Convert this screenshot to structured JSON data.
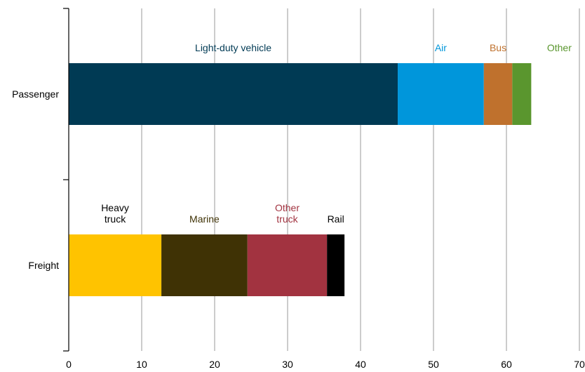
{
  "chart_data": {
    "type": "bar",
    "orientation": "horizontal",
    "stacked": true,
    "title": "",
    "xlabel": "",
    "ylabel": "",
    "xlim": [
      0,
      70
    ],
    "x_ticks": [
      "0",
      "10",
      "20",
      "30",
      "40",
      "50",
      "60",
      "70"
    ],
    "grid": "vertical",
    "legend": "none",
    "categories": [
      "Passenger",
      "Freight"
    ],
    "bars": [
      {
        "category": "Passenger",
        "segments": [
          {
            "name": "Light-duty vehicle",
            "label": [
              "Light-duty vehicle"
            ],
            "value": 45.1,
            "color": "#003a54",
            "label_color": "#003a54"
          },
          {
            "name": "Air",
            "label": [
              "Air"
            ],
            "value": 11.8,
            "color": "#0096db",
            "label_color": "#0096db"
          },
          {
            "name": "Bus",
            "label": [
              "Bus"
            ],
            "value": 3.9,
            "color": "#bf712d",
            "label_color": "#bf712d"
          },
          {
            "name": "Other",
            "label": [
              "Other"
            ],
            "value": 2.6,
            "color": "#5a962e",
            "label_color": "#5a962e"
          }
        ]
      },
      {
        "category": "Freight",
        "segments": [
          {
            "name": "Heavy truck",
            "label": [
              "Heavy",
              "truck"
            ],
            "value": 12.7,
            "color": "#ffc300",
            "label_color": "#000000"
          },
          {
            "name": "Marine",
            "label": [
              "Marine"
            ],
            "value": 11.8,
            "color": "#3f3205",
            "label_color": "#3f3205"
          },
          {
            "name": "Other truck",
            "label": [
              "Other",
              "truck"
            ],
            "value": 10.9,
            "color": "#a23340",
            "label_color": "#a23340"
          },
          {
            "name": "Rail",
            "label": [
              "Rail"
            ],
            "value": 2.4,
            "color": "#000000",
            "label_color": "#000000"
          }
        ]
      }
    ]
  }
}
